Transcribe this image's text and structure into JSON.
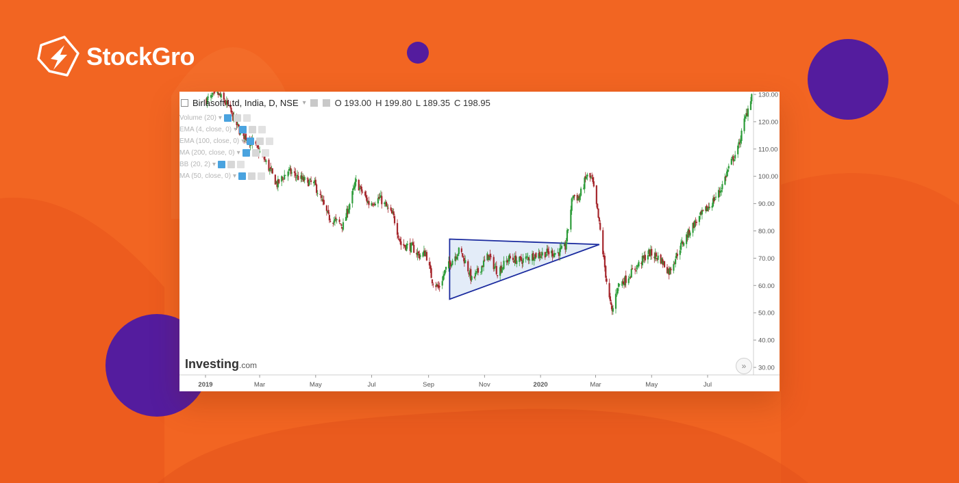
{
  "brand": {
    "name": "StockGro",
    "logo_icon": "stockgro-logo-icon"
  },
  "colors": {
    "background": "#f26522",
    "blob_purple": "#541c9e",
    "candle_up": "#2e9c3a",
    "candle_down": "#a5262c",
    "triangle_stroke": "#1a2a9e",
    "triangle_fill": "#e3ecf8"
  },
  "chart": {
    "symbol_line": "Birlasoft Ltd, India, D, NSE",
    "ohlc": {
      "open": "O 193.00",
      "high": "H 199.80",
      "low": "L 189.35",
      "close": "C 198.95"
    },
    "indicators": [
      "Volume (20)",
      "EMA (4, close, 0)",
      "EMA (100, close, 0)",
      "MA (200, close, 0)",
      "BB (20, 2)",
      "MA (50, close, 0)"
    ],
    "watermark": "Investing",
    "watermark_suffix": ".com",
    "scroll_button": "»"
  },
  "chart_data": {
    "type": "candlestick",
    "title": "Birlasoft Ltd, India, D, NSE",
    "y_ticks": [
      "130.00",
      "120.00",
      "110.00",
      "100.00",
      "90.00",
      "80.00",
      "70.00",
      "60.00",
      "50.00",
      "40.00",
      "30.00"
    ],
    "x_ticks": [
      "2019",
      "Mar",
      "May",
      "Jul",
      "Sep",
      "Nov",
      "2020",
      "Mar",
      "May",
      "Jul"
    ],
    "ylim": [
      27,
      131
    ],
    "ohlc_last": {
      "open": 193.0,
      "high": 199.8,
      "low": 189.35,
      "close": 198.95
    },
    "path": [
      [
        "2019-01-02",
        128
      ],
      [
        "2019-01-15",
        130
      ],
      [
        "2019-01-25",
        126
      ],
      [
        "2019-02-08",
        116
      ],
      [
        "2019-02-22",
        112
      ],
      [
        "2019-03-05",
        107
      ],
      [
        "2019-03-20",
        97
      ],
      [
        "2019-04-01",
        102
      ],
      [
        "2019-04-15",
        99
      ],
      [
        "2019-04-30",
        97
      ],
      [
        "2019-05-15",
        85
      ],
      [
        "2019-05-31",
        82
      ],
      [
        "2019-06-14",
        98
      ],
      [
        "2019-06-28",
        90
      ],
      [
        "2019-07-10",
        92
      ],
      [
        "2019-07-25",
        85
      ],
      [
        "2019-08-02",
        75
      ],
      [
        "2019-08-14",
        74
      ],
      [
        "2019-08-22",
        71
      ],
      [
        "2019-08-29",
        72
      ],
      [
        "2019-09-05",
        62
      ],
      [
        "2019-09-12",
        59
      ],
      [
        "2019-09-20",
        66
      ],
      [
        "2019-09-30",
        71
      ],
      [
        "2019-10-05",
        73
      ],
      [
        "2019-10-12",
        68
      ],
      [
        "2019-10-18",
        62
      ],
      [
        "2019-10-25",
        65
      ],
      [
        "2019-11-05",
        71
      ],
      [
        "2019-11-15",
        65
      ],
      [
        "2019-11-28",
        70
      ],
      [
        "2019-12-10",
        69
      ],
      [
        "2019-12-24",
        71
      ],
      [
        "2020-01-08",
        72
      ],
      [
        "2020-01-20",
        72
      ],
      [
        "2020-01-28",
        74
      ],
      [
        "2020-02-05",
        93
      ],
      [
        "2020-02-12",
        92
      ],
      [
        "2020-02-20",
        100
      ],
      [
        "2020-02-26",
        99
      ],
      [
        "2020-03-03",
        87
      ],
      [
        "2020-03-06",
        80
      ],
      [
        "2020-03-12",
        64
      ],
      [
        "2020-03-16",
        55
      ],
      [
        "2020-03-19",
        50
      ],
      [
        "2020-03-25",
        60
      ],
      [
        "2020-04-02",
        62
      ],
      [
        "2020-04-15",
        67
      ],
      [
        "2020-04-28",
        72
      ],
      [
        "2020-05-10",
        70
      ],
      [
        "2020-05-20",
        65
      ],
      [
        "2020-06-01",
        74
      ],
      [
        "2020-06-15",
        82
      ],
      [
        "2020-06-25",
        86
      ],
      [
        "2020-07-05",
        90
      ],
      [
        "2020-07-15",
        95
      ],
      [
        "2020-07-25",
        104
      ],
      [
        "2020-08-03",
        110
      ],
      [
        "2020-08-10",
        120
      ],
      [
        "2020-08-18",
        130
      ]
    ],
    "pattern": {
      "type": "triangle",
      "apex_top_left": [
        "2019-09-24",
        77
      ],
      "apex_bottom_left": [
        "2019-09-24",
        55
      ],
      "apex_right": [
        "2020-03-05",
        75
      ]
    }
  }
}
